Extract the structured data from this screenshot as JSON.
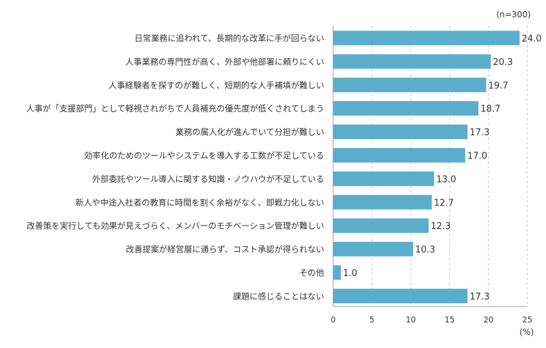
{
  "chart_data": {
    "type": "bar",
    "orientation": "horizontal",
    "note": "(n=300)",
    "unit": "(%)",
    "categories": [
      "日常業務に追われて、長期的な改革に手が回らない",
      "人事業務の専門性が高く、外部や他部署に頼りにくい",
      "人事経験者を探すのが難しく、短期的な人手補填が難しい",
      "人事が「支援部門」として軽視されがちで人員補充の優先度が低くされてしまう",
      "業務の属人化が進んでいて分担が難しい",
      "効率化のためのツールやシステムを導入する工数が不足している",
      "外部委託やツール導入に関する知識・ノウハウが不足している",
      "新人や中途入社者の教育に時間を割く余裕がなく、即戦力化しない",
      "改善策を実行しても効果が見えづらく、メンバーのモチベーション管理が難しい",
      "改善提案が経営層に通らず、コスト承認が得られない",
      "その他",
      "課題に感じることはない"
    ],
    "values": [
      24.0,
      20.3,
      19.7,
      18.7,
      17.3,
      17.0,
      13.0,
      12.7,
      12.3,
      10.3,
      1.0,
      17.3
    ],
    "value_labels": [
      "24.0",
      "20.3",
      "19.7",
      "18.7",
      "17.3",
      "17.0",
      "13.0",
      "12.7",
      "12.3",
      "10.3",
      "1.0",
      "17.3"
    ],
    "xlim": [
      0,
      25
    ],
    "xticks": [
      0,
      5,
      10,
      15,
      20,
      25
    ],
    "xtick_labels": [
      "0",
      "5",
      "10",
      "15",
      "20",
      "25"
    ],
    "grid": "vertical dashed",
    "bar_color": "#5aaecb",
    "grid_color": "#c9c9dd",
    "axis_color": "#999999"
  }
}
